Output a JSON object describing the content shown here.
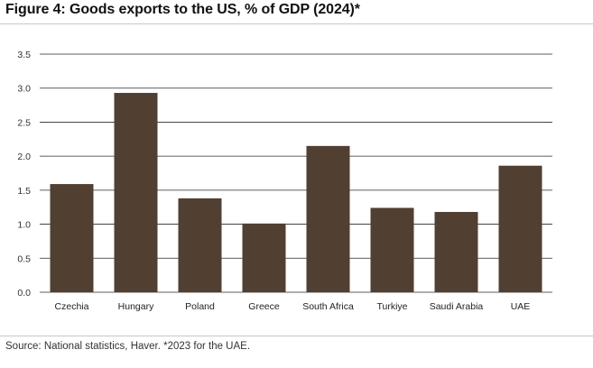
{
  "header": {
    "title": "Figure 4: Goods exports to the US, % of GDP (2024)*"
  },
  "footer": {
    "source": "Source: National statistics, Haver. *2023 for the UAE."
  },
  "colors": {
    "bar": "#513f31",
    "grid": "#2b2b2b"
  },
  "chart_data": {
    "type": "bar",
    "title": "Figure 4: Goods exports to the US, % of GDP (2024)*",
    "xlabel": "",
    "ylabel": "",
    "categories": [
      "Czechia",
      "Hungary",
      "Poland",
      "Greece",
      "South Africa",
      "Turkiye",
      "Saudi Arabia",
      "UAE"
    ],
    "values": [
      1.59,
      2.93,
      1.38,
      1.01,
      2.15,
      1.24,
      1.18,
      1.86
    ],
    "ylim": [
      0,
      3.5
    ],
    "yticks": [
      "0.0",
      "0.5",
      "1.0",
      "1.5",
      "2.0",
      "2.5",
      "3.0",
      "3.5"
    ],
    "grid": true,
    "legend": "none"
  }
}
